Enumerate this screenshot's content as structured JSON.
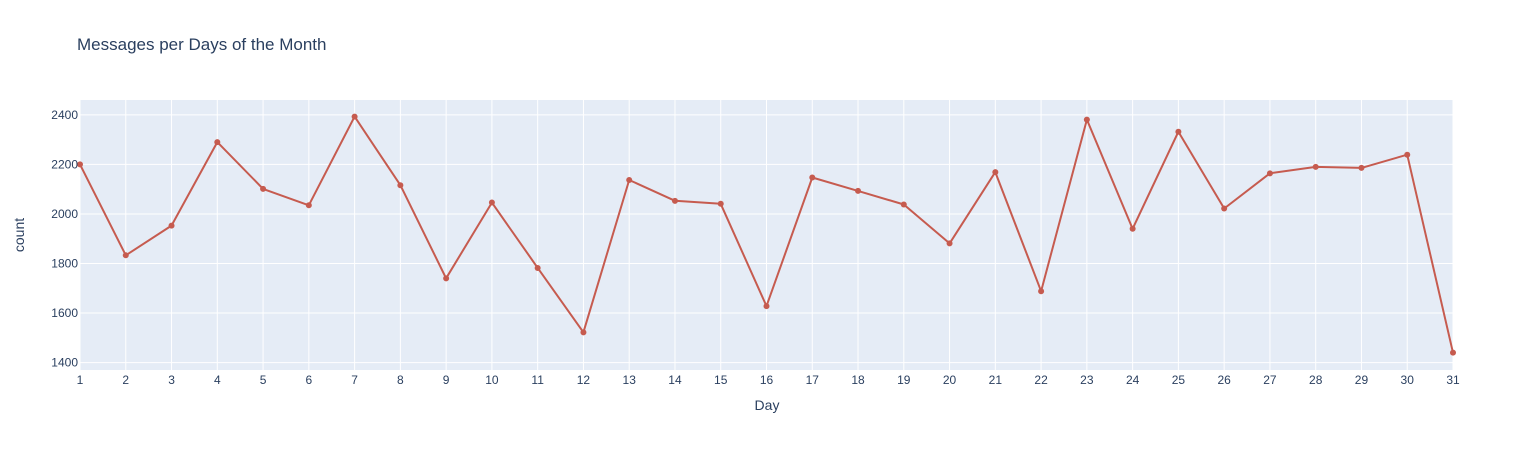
{
  "chart_data": {
    "type": "line",
    "title": "Messages per Days of the Month",
    "xlabel": "Day",
    "ylabel": "count",
    "x": [
      1,
      2,
      3,
      4,
      5,
      6,
      7,
      8,
      9,
      10,
      11,
      12,
      13,
      14,
      15,
      16,
      17,
      18,
      19,
      20,
      21,
      22,
      23,
      24,
      25,
      26,
      27,
      28,
      29,
      30,
      31
    ],
    "series": [
      {
        "values": [
          2200,
          1833,
          1953,
          2290,
          2101,
          2035,
          2393,
          2116,
          1740,
          2046,
          1782,
          1522,
          2137,
          2053,
          2041,
          1628,
          2147,
          2093,
          2038,
          1881,
          2169,
          1688,
          2381,
          1940,
          2332,
          2022,
          2164,
          2190,
          2186,
          2239,
          1440
        ]
      }
    ],
    "xlim": [
      1,
      31
    ],
    "ylim": [
      1370,
      2460
    ],
    "yticks": [
      1400,
      1600,
      1800,
      2000,
      2200,
      2400
    ],
    "xticks": [
      1,
      2,
      3,
      4,
      5,
      6,
      7,
      8,
      9,
      10,
      11,
      12,
      13,
      14,
      15,
      16,
      17,
      18,
      19,
      20,
      21,
      22,
      23,
      24,
      25,
      26,
      27,
      28,
      29,
      30,
      31
    ],
    "grid": true,
    "line_color": "#c65b4f",
    "plot_bgcolor": "#e5ecf6",
    "grid_color": "#ffffff",
    "text_color": "#2a3f5f"
  }
}
